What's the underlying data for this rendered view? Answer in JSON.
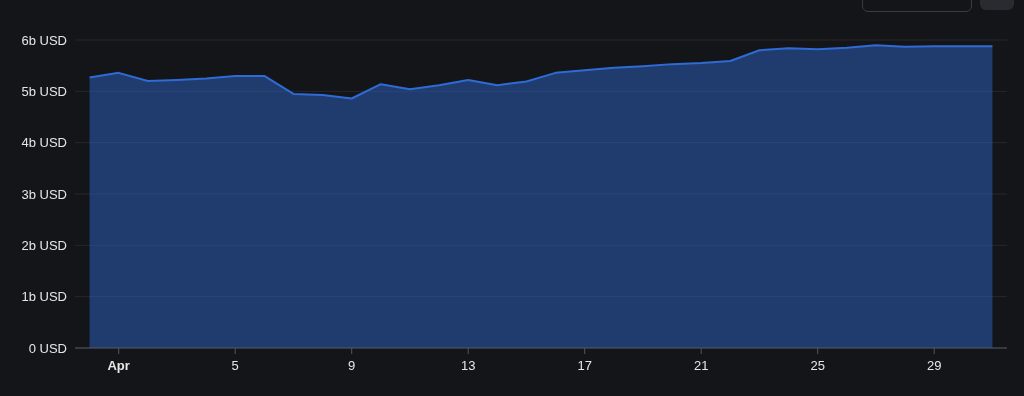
{
  "chart_data": {
    "type": "area",
    "x": [
      "--03-31",
      "--04-01",
      "--04-02",
      "--04-03",
      "--04-04",
      "--04-05",
      "--04-06",
      "--04-07",
      "--04-08",
      "--04-09",
      "--04-10",
      "--04-11",
      "--04-12",
      "--04-13",
      "--04-14",
      "--04-15",
      "--04-16",
      "--04-17",
      "--04-18",
      "--04-19",
      "--04-20",
      "--04-21",
      "--04-22",
      "--04-23",
      "--04-24",
      "--04-25",
      "--04-26",
      "--04-27",
      "--04-28",
      "--04-29",
      "--04-30",
      "--05-01"
    ],
    "series": [
      {
        "color": "#2f6bd4",
        "values": [
          5.27,
          5.36,
          5.2,
          5.22,
          5.25,
          5.3,
          5.3,
          4.95,
          4.93,
          4.86,
          5.14,
          5.04,
          5.12,
          5.22,
          5.12,
          5.19,
          5.36,
          5.41,
          5.46,
          5.49,
          5.53,
          5.55,
          5.59,
          5.8,
          5.84,
          5.82,
          5.85,
          5.9,
          5.87,
          5.88,
          5.88,
          5.88
        ]
      }
    ],
    "xticks": [
      {
        "value": "--04-01",
        "label": "Apr"
      },
      {
        "value": "--04-05",
        "label": "5"
      },
      {
        "value": "--04-09",
        "label": "9"
      },
      {
        "value": "--04-13",
        "label": "13"
      },
      {
        "value": "--04-17",
        "label": "17"
      },
      {
        "value": "--04-21",
        "label": "21"
      },
      {
        "value": "--04-25",
        "label": "25"
      },
      {
        "value": "--04-29",
        "label": "29"
      }
    ],
    "xlim": [
      "--03-30T12:00",
      "--05-01T12:00"
    ],
    "ylim": [
      0,
      6
    ],
    "yticks": [
      {
        "value": 0,
        "label": "0 USD"
      },
      {
        "value": 1,
        "label": "1b USD"
      },
      {
        "value": 2,
        "label": "2b USD"
      },
      {
        "value": 3,
        "label": "3b USD"
      },
      {
        "value": 4,
        "label": "4b USD"
      },
      {
        "value": 5,
        "label": "5b USD"
      },
      {
        "value": 6,
        "label": "6b USD"
      }
    ],
    "grid": "y"
  }
}
